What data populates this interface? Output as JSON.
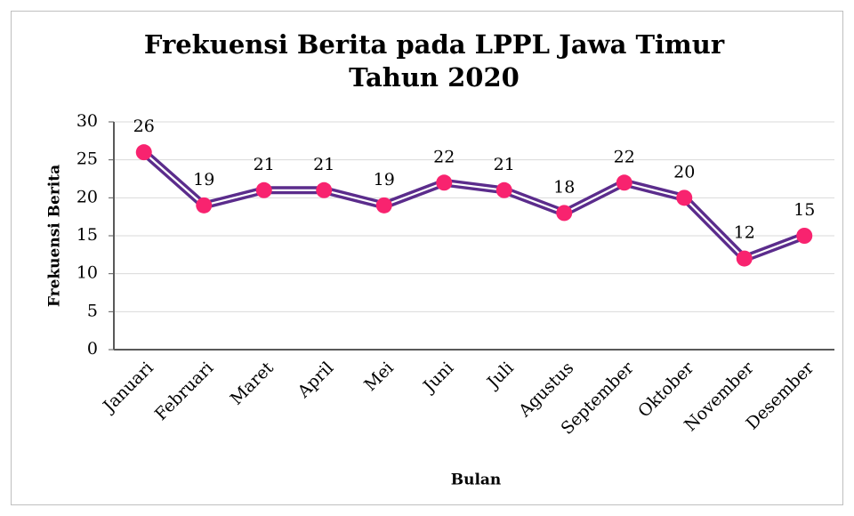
{
  "chart_data": {
    "type": "line",
    "title": [
      "Frekuensi Berita pada LPPL Jawa Timur",
      "Tahun 2020"
    ],
    "x_label": "Bulan",
    "y_label": "Frekuensi Berita",
    "categories": [
      "Januari",
      "Februari",
      "Maret",
      "April",
      "Mei",
      "Juni",
      "Juli",
      "Agustus",
      "September",
      "Oktober",
      "November",
      "Desember"
    ],
    "series": [
      {
        "name": "Frekuensi Berita",
        "color": "#5b2c8c",
        "marker_color": "#f8236f",
        "values": [
          26,
          19,
          21,
          21,
          19,
          22,
          21,
          18,
          22,
          20,
          12,
          15
        ]
      }
    ],
    "ylim": [
      0,
      30
    ],
    "yticks": [
      0,
      5,
      10,
      15,
      20,
      25,
      30
    ],
    "grid": true
  }
}
